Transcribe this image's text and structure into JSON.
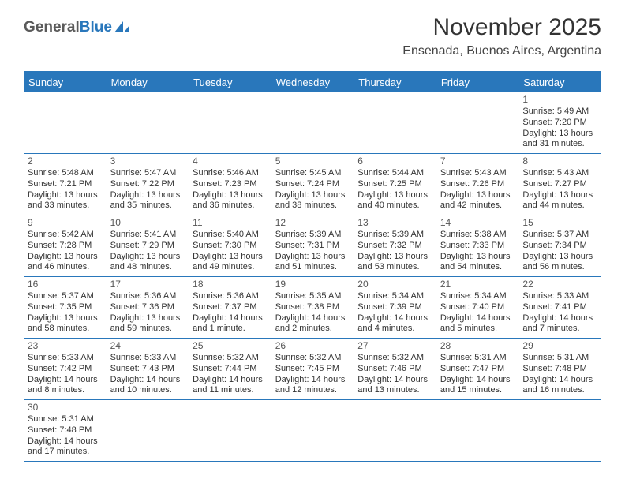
{
  "logo": {
    "text1": "General",
    "text2": "Blue"
  },
  "title": "November 2025",
  "location": "Ensenada, Buenos Aires, Argentina",
  "colors": {
    "accent": "#2977bb",
    "background": "#ffffff",
    "text": "#333333",
    "header_text": "#ffffff",
    "logo_gray": "#5a5a5a"
  },
  "day_headers": [
    "Sunday",
    "Monday",
    "Tuesday",
    "Wednesday",
    "Thursday",
    "Friday",
    "Saturday"
  ],
  "weeks": [
    [
      null,
      null,
      null,
      null,
      null,
      null,
      {
        "n": "1",
        "sunrise": "5:49 AM",
        "sunset": "7:20 PM",
        "daylight": "13 hours and 31 minutes."
      }
    ],
    [
      {
        "n": "2",
        "sunrise": "5:48 AM",
        "sunset": "7:21 PM",
        "daylight": "13 hours and 33 minutes."
      },
      {
        "n": "3",
        "sunrise": "5:47 AM",
        "sunset": "7:22 PM",
        "daylight": "13 hours and 35 minutes."
      },
      {
        "n": "4",
        "sunrise": "5:46 AM",
        "sunset": "7:23 PM",
        "daylight": "13 hours and 36 minutes."
      },
      {
        "n": "5",
        "sunrise": "5:45 AM",
        "sunset": "7:24 PM",
        "daylight": "13 hours and 38 minutes."
      },
      {
        "n": "6",
        "sunrise": "5:44 AM",
        "sunset": "7:25 PM",
        "daylight": "13 hours and 40 minutes."
      },
      {
        "n": "7",
        "sunrise": "5:43 AM",
        "sunset": "7:26 PM",
        "daylight": "13 hours and 42 minutes."
      },
      {
        "n": "8",
        "sunrise": "5:43 AM",
        "sunset": "7:27 PM",
        "daylight": "13 hours and 44 minutes."
      }
    ],
    [
      {
        "n": "9",
        "sunrise": "5:42 AM",
        "sunset": "7:28 PM",
        "daylight": "13 hours and 46 minutes."
      },
      {
        "n": "10",
        "sunrise": "5:41 AM",
        "sunset": "7:29 PM",
        "daylight": "13 hours and 48 minutes."
      },
      {
        "n": "11",
        "sunrise": "5:40 AM",
        "sunset": "7:30 PM",
        "daylight": "13 hours and 49 minutes."
      },
      {
        "n": "12",
        "sunrise": "5:39 AM",
        "sunset": "7:31 PM",
        "daylight": "13 hours and 51 minutes."
      },
      {
        "n": "13",
        "sunrise": "5:39 AM",
        "sunset": "7:32 PM",
        "daylight": "13 hours and 53 minutes."
      },
      {
        "n": "14",
        "sunrise": "5:38 AM",
        "sunset": "7:33 PM",
        "daylight": "13 hours and 54 minutes."
      },
      {
        "n": "15",
        "sunrise": "5:37 AM",
        "sunset": "7:34 PM",
        "daylight": "13 hours and 56 minutes."
      }
    ],
    [
      {
        "n": "16",
        "sunrise": "5:37 AM",
        "sunset": "7:35 PM",
        "daylight": "13 hours and 58 minutes."
      },
      {
        "n": "17",
        "sunrise": "5:36 AM",
        "sunset": "7:36 PM",
        "daylight": "13 hours and 59 minutes."
      },
      {
        "n": "18",
        "sunrise": "5:36 AM",
        "sunset": "7:37 PM",
        "daylight": "14 hours and 1 minute."
      },
      {
        "n": "19",
        "sunrise": "5:35 AM",
        "sunset": "7:38 PM",
        "daylight": "14 hours and 2 minutes."
      },
      {
        "n": "20",
        "sunrise": "5:34 AM",
        "sunset": "7:39 PM",
        "daylight": "14 hours and 4 minutes."
      },
      {
        "n": "21",
        "sunrise": "5:34 AM",
        "sunset": "7:40 PM",
        "daylight": "14 hours and 5 minutes."
      },
      {
        "n": "22",
        "sunrise": "5:33 AM",
        "sunset": "7:41 PM",
        "daylight": "14 hours and 7 minutes."
      }
    ],
    [
      {
        "n": "23",
        "sunrise": "5:33 AM",
        "sunset": "7:42 PM",
        "daylight": "14 hours and 8 minutes."
      },
      {
        "n": "24",
        "sunrise": "5:33 AM",
        "sunset": "7:43 PM",
        "daylight": "14 hours and 10 minutes."
      },
      {
        "n": "25",
        "sunrise": "5:32 AM",
        "sunset": "7:44 PM",
        "daylight": "14 hours and 11 minutes."
      },
      {
        "n": "26",
        "sunrise": "5:32 AM",
        "sunset": "7:45 PM",
        "daylight": "14 hours and 12 minutes."
      },
      {
        "n": "27",
        "sunrise": "5:32 AM",
        "sunset": "7:46 PM",
        "daylight": "14 hours and 13 minutes."
      },
      {
        "n": "28",
        "sunrise": "5:31 AM",
        "sunset": "7:47 PM",
        "daylight": "14 hours and 15 minutes."
      },
      {
        "n": "29",
        "sunrise": "5:31 AM",
        "sunset": "7:48 PM",
        "daylight": "14 hours and 16 minutes."
      }
    ],
    [
      {
        "n": "30",
        "sunrise": "5:31 AM",
        "sunset": "7:48 PM",
        "daylight": "14 hours and 17 minutes."
      },
      null,
      null,
      null,
      null,
      null,
      null
    ]
  ],
  "labels": {
    "sunrise_prefix": "Sunrise: ",
    "sunset_prefix": "Sunset: ",
    "daylight_prefix": "Daylight: "
  }
}
